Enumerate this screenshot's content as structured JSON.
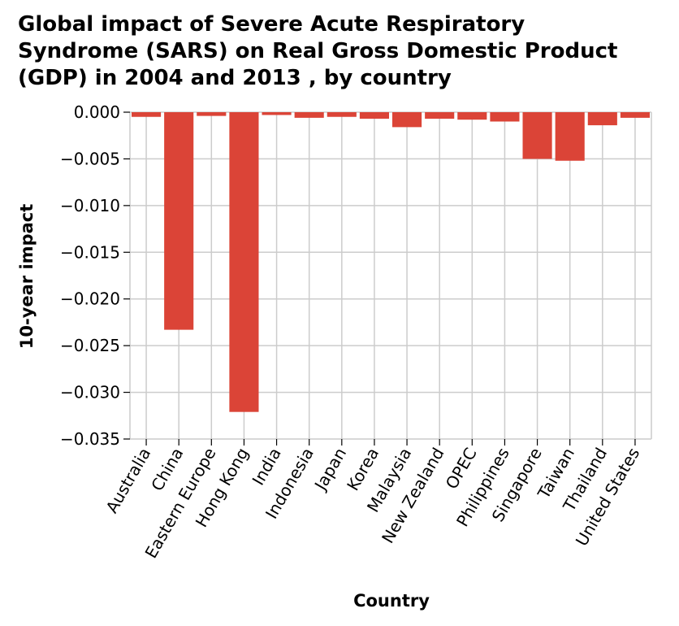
{
  "chart_data": {
    "type": "bar",
    "title_lines": [
      "Global impact of Severe Acute Respiratory",
      "Syndrome (SARS) on Real Gross Domestic Product",
      "(GDP) in 2004 and 2013 , by country"
    ],
    "xlabel": "Country",
    "ylabel": "10-year impact",
    "categories": [
      "Australia",
      "China",
      "Eastern Europe",
      "Hong Kong",
      "India",
      "Indonesia",
      "Japan",
      "Korea",
      "Malaysia",
      "New Zealand",
      "OPEC",
      "Philippines",
      "Singapore",
      "Taiwan",
      "Thailand",
      "United States"
    ],
    "values": [
      -0.0005,
      -0.0233,
      -0.0004,
      -0.0321,
      -0.0003,
      -0.0006,
      -0.0005,
      -0.0007,
      -0.0016,
      -0.0007,
      -0.0008,
      -0.001,
      -0.005,
      -0.0052,
      -0.0014,
      -0.0006
    ],
    "ylim": [
      -0.035,
      0.0
    ],
    "yticks": [
      "0.000",
      "−0.005",
      "−0.010",
      "−0.015",
      "−0.020",
      "−0.025",
      "−0.030",
      "−0.035"
    ],
    "ytick_values": [
      0.0,
      -0.005,
      -0.01,
      -0.015,
      -0.02,
      -0.025,
      -0.03,
      -0.035
    ],
    "grid": true,
    "bar_color": "#db4437"
  }
}
